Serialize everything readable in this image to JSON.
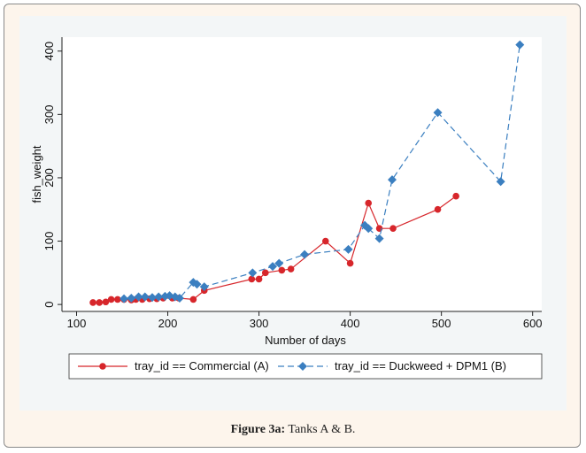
{
  "chart_data": {
    "type": "line",
    "x_label": "Number of days",
    "y_label": "fish_weight",
    "xlim": [
      84,
      610
    ],
    "ylim": [
      -11,
      422
    ],
    "xticks": [
      100,
      200,
      300,
      400,
      500,
      600
    ],
    "yticks": [
      0,
      100,
      200,
      300,
      400
    ],
    "series": [
      {
        "name": "tray_id == Commercial (A)",
        "color": "#d7262b",
        "marker": "circle",
        "dashed": false,
        "x": [
          118,
          125,
          132,
          138,
          145,
          152,
          160,
          165,
          172,
          180,
          188,
          195,
          205,
          212,
          228,
          240,
          292,
          300,
          307,
          325,
          335,
          373,
          400,
          420,
          432,
          447,
          496,
          516
        ],
        "values": [
          3,
          3,
          4,
          8,
          8,
          8,
          7,
          8,
          8,
          9,
          9,
          10,
          10,
          10,
          8,
          22,
          40,
          40,
          50,
          54,
          56,
          100,
          65,
          160,
          120,
          120,
          150,
          171
        ]
      },
      {
        "name": "tray_id == Duckweed + DPM1 (B)",
        "color": "#3b7fc0",
        "marker": "diamond",
        "dashed": true,
        "x": [
          152,
          160,
          168,
          175,
          183,
          190,
          197,
          202,
          208,
          213,
          228,
          232,
          240,
          293,
          315,
          322,
          350,
          398,
          416,
          420,
          432,
          446,
          496,
          565,
          586
        ],
        "values": [
          9,
          10,
          12,
          12,
          11,
          12,
          13,
          14,
          12,
          10,
          35,
          32,
          28,
          50,
          60,
          65,
          79,
          87,
          125,
          120,
          104,
          197,
          303,
          194,
          410
        ]
      }
    ]
  },
  "caption": {
    "label": "Figure 3a:",
    "text": "Tanks A & B."
  }
}
